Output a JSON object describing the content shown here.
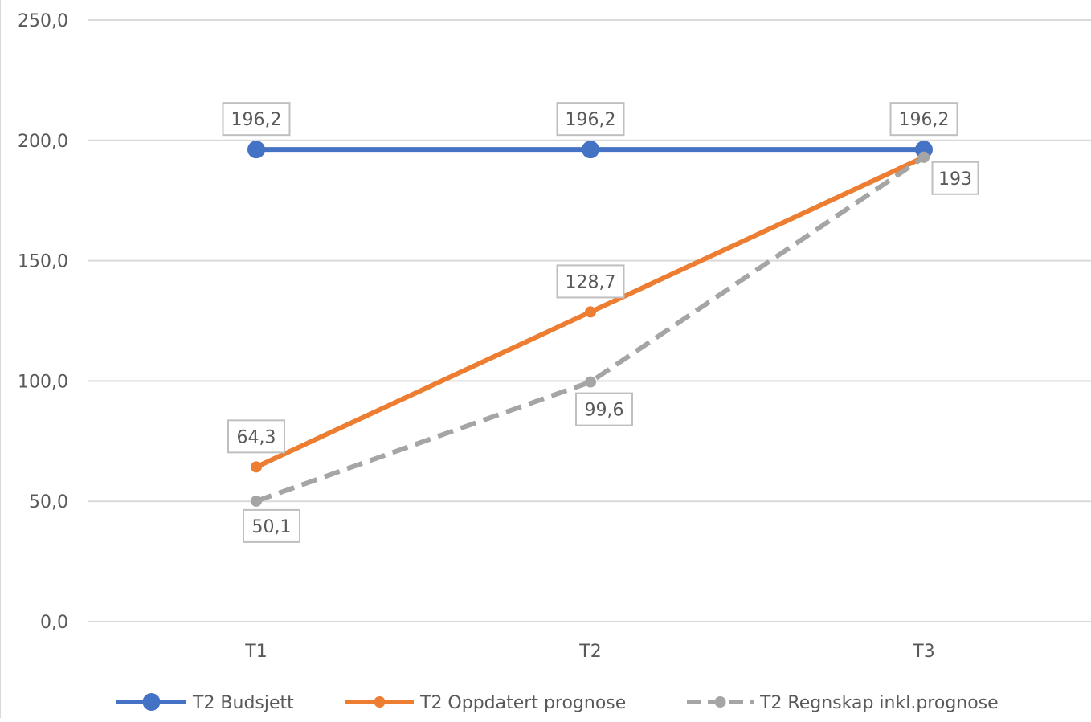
{
  "chart_data": {
    "type": "line",
    "categories": [
      "T1",
      "T2",
      "T3"
    ],
    "ylim": [
      0,
      250
    ],
    "yticks": [
      0,
      50,
      100,
      150,
      200,
      250
    ],
    "ytick_labels": [
      "0,0",
      "50,0",
      "100,0",
      "150,0",
      "200,0",
      "250,0"
    ],
    "grid": true,
    "legend": "bottom",
    "series": [
      {
        "name": "T2 Budsjett",
        "values": [
          196.2,
          196.2,
          196.2
        ],
        "labels": [
          "196,2",
          "196,2",
          "196,2"
        ],
        "color": "#4472C4",
        "style": "solid",
        "marker": "large-circle"
      },
      {
        "name": "T2 Oppdatert prognose",
        "values": [
          64.3,
          128.7,
          193.0
        ],
        "labels": [
          "64,3",
          "128,7",
          ""
        ],
        "color": "#ED7D31",
        "style": "solid",
        "marker": "circle"
      },
      {
        "name": "T2 Regnskap inkl.prognose",
        "values": [
          50.1,
          99.6,
          193.0
        ],
        "labels": [
          "50,1",
          "99,6",
          "193"
        ],
        "color": "#A5A5A5",
        "style": "dashed",
        "marker": "circle"
      }
    ]
  }
}
